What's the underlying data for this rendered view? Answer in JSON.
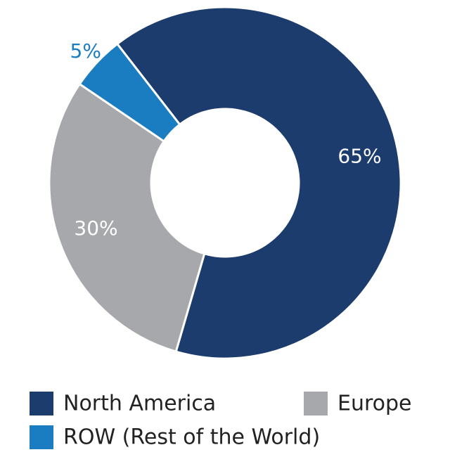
{
  "chart_data": {
    "type": "donut",
    "categories": [
      "North America",
      "Europe",
      "ROW (Rest of the World)"
    ],
    "values": [
      65,
      30,
      5
    ],
    "value_labels": [
      "65%",
      "30%",
      "5%"
    ],
    "colors": [
      "#1b3c6d",
      "#a7a8ab",
      "#1a7cc1"
    ]
  }
}
